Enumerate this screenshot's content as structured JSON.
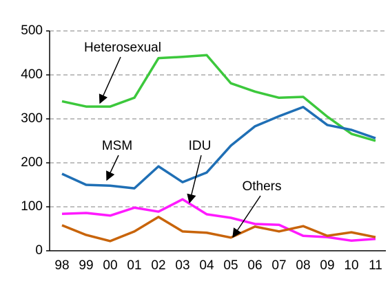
{
  "chart_data": {
    "type": "line",
    "categories": [
      "98",
      "99",
      "00",
      "01",
      "02",
      "03",
      "04",
      "05",
      "06",
      "07",
      "08",
      "09",
      "10",
      "11"
    ],
    "series": [
      {
        "name": "Heterosexual",
        "color": "#3cc83c",
        "values": [
          340,
          328,
          328,
          348,
          438,
          441,
          445,
          381,
          362,
          348,
          350,
          305,
          266,
          250
        ]
      },
      {
        "name": "MSM",
        "color": "#1f6fb5",
        "values": [
          175,
          150,
          148,
          142,
          192,
          156,
          178,
          239,
          283,
          306,
          327,
          286,
          275,
          256
        ]
      },
      {
        "name": "IDU",
        "color": "#ff1aff",
        "values": [
          84,
          86,
          80,
          98,
          89,
          117,
          83,
          75,
          61,
          59,
          34,
          31,
          23,
          27
        ]
      },
      {
        "name": "Others",
        "color": "#c8640a",
        "values": [
          58,
          36,
          22,
          44,
          77,
          44,
          41,
          30,
          55,
          44,
          56,
          34,
          42,
          31
        ]
      }
    ],
    "annotations": [
      "Heterosexual",
      "MSM",
      "IDU",
      "Others"
    ],
    "ylim": [
      0,
      500
    ],
    "yticks": [
      0,
      100,
      200,
      300,
      400,
      500
    ],
    "grid": true
  }
}
